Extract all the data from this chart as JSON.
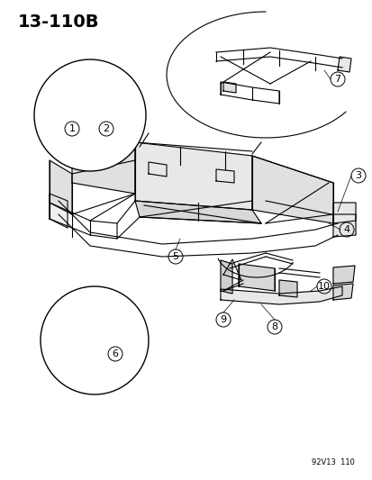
{
  "page_id": "13-110B",
  "doc_id": "92V13  110",
  "background_color": "#ffffff",
  "line_color": "#000000",
  "part_numbers": [
    1,
    2,
    3,
    4,
    5,
    6,
    7,
    8,
    9,
    10
  ],
  "title_fontsize": 14,
  "label_fontsize": 8,
  "fig_width": 4.14,
  "fig_height": 5.33
}
